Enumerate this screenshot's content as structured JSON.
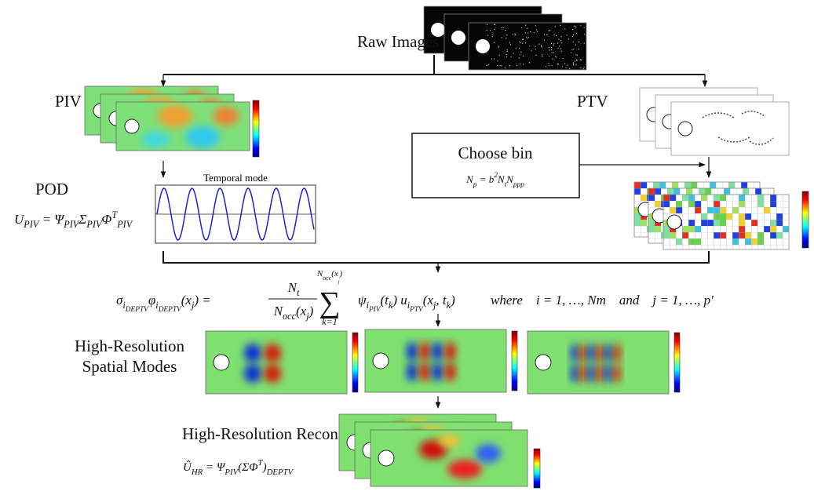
{
  "raw_images_label": "Raw Images",
  "piv_label": "PIV",
  "ptv_label": "PTV",
  "choose_bin": {
    "title": "Choose bin",
    "equation": [
      {
        "text": "N"
      },
      {
        "text": "p",
        "pos": "sub"
      },
      {
        "text": " = b"
      },
      {
        "text": "2",
        "pos": "sup"
      },
      {
        "text": "N"
      },
      {
        "text": "t",
        "pos": "sub"
      },
      {
        "text": "N"
      },
      {
        "text": "ppp",
        "pos": "sub"
      }
    ]
  },
  "pod": {
    "label": "POD",
    "equation": [
      {
        "text": "U"
      },
      {
        "text": "PIV",
        "pos": "sub"
      },
      {
        "text": " = Ψ"
      },
      {
        "text": "PIV",
        "pos": "sub"
      },
      {
        "text": "Σ"
      },
      {
        "text": "PIV",
        "pos": "sub"
      },
      {
        "text": "Φ"
      },
      {
        "text": "T",
        "pos": "sup"
      },
      {
        "text": "PIV",
        "pos": "sub"
      }
    ]
  },
  "temporal_mode_title": "Temporal mode",
  "main_equation": {
    "lhs": [
      {
        "text": "σ"
      },
      {
        "text": "i",
        "pos": "sub"
      },
      {
        "text": "DEPTV",
        "pos": "subsub"
      },
      {
        "text": "φ"
      },
      {
        "text": "i",
        "pos": "sub"
      },
      {
        "text": "DEPTV",
        "pos": "subsub"
      },
      {
        "text": "(x"
      },
      {
        "text": "j",
        "pos": "sub"
      },
      {
        "text": ") = "
      }
    ],
    "numerator": [
      {
        "text": "N"
      },
      {
        "text": "t",
        "pos": "sub"
      }
    ],
    "denominator": [
      {
        "text": "N"
      },
      {
        "text": "occ",
        "pos": "sub"
      },
      {
        "text": "(x"
      },
      {
        "text": "j",
        "pos": "sub"
      },
      {
        "text": ")"
      }
    ],
    "sum_symbol": [
      {
        "text": "∑"
      }
    ],
    "sum_upper": [
      {
        "text": "N"
      },
      {
        "text": "occ",
        "pos": "sub"
      },
      {
        "text": "(x"
      },
      {
        "text": "j",
        "pos": "subsub"
      },
      {
        "text": ")"
      }
    ],
    "sum_lower": [
      {
        "text": "k=1"
      }
    ],
    "summand": [
      {
        "text": "ψ"
      },
      {
        "text": "i",
        "pos": "sub"
      },
      {
        "text": "PIV",
        "pos": "subsub"
      },
      {
        "text": "(t"
      },
      {
        "text": "k",
        "pos": "sub"
      },
      {
        "text": ") u"
      },
      {
        "text": "i",
        "pos": "sub"
      },
      {
        "text": "PTV",
        "pos": "subsub"
      },
      {
        "text": "(x"
      },
      {
        "text": "j",
        "pos": "sub"
      },
      {
        "text": ", t"
      },
      {
        "text": "k",
        "pos": "sub"
      },
      {
        "text": ")"
      }
    ],
    "condition": [
      {
        "text": "where    i = 1, …, Nm    and    j = 1, …, p′"
      }
    ]
  },
  "spatial_modes_label": [
    "High-Resolution",
    "Spatial Modes"
  ],
  "reconstruction": {
    "label": "High-Resolution Reconstruction",
    "equation": [
      {
        "text": "Û"
      },
      {
        "text": "HR",
        "pos": "sub"
      },
      {
        "text": " = Ψ"
      },
      {
        "text": "PIV",
        "pos": "sub"
      },
      {
        "text": "(ΣΦ"
      },
      {
        "text": "T",
        "pos": "sup"
      },
      {
        "text": ")"
      },
      {
        "text": "DEPTV",
        "pos": "sub"
      }
    ]
  }
}
